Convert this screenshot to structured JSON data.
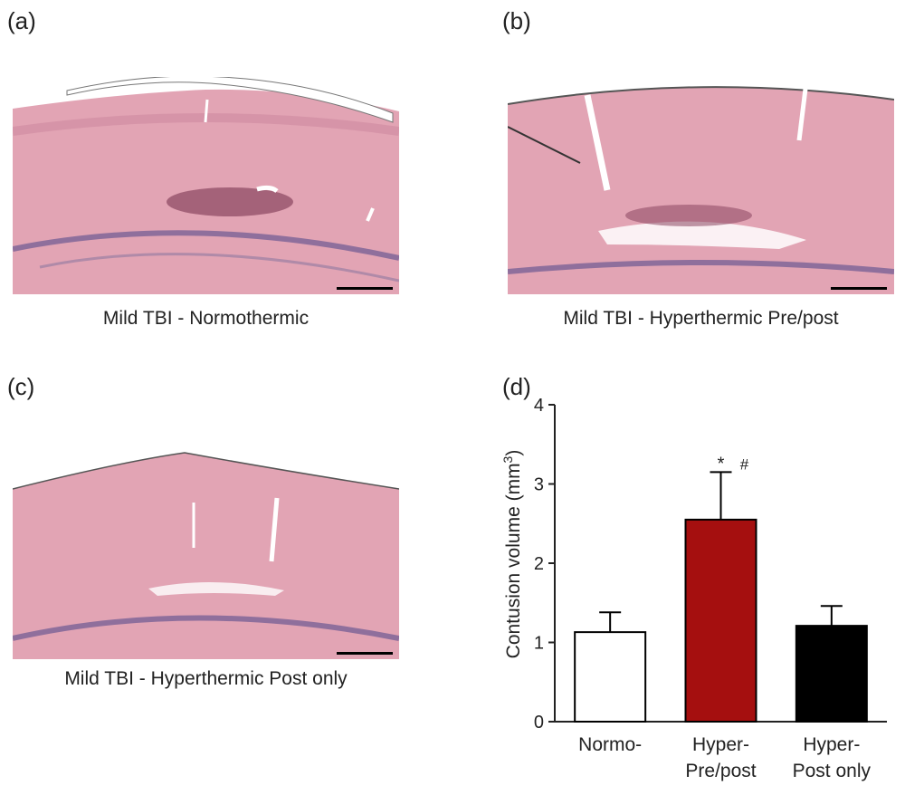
{
  "panels": {
    "a": {
      "letter": "(a)",
      "caption": "Mild TBI - Normothermic"
    },
    "b": {
      "letter": "(b)",
      "caption": "Mild TBI - Hyperthermic Pre/post"
    },
    "c": {
      "letter": "(c)",
      "caption": "Mild TBI - Hyperthermic Post only"
    },
    "d": {
      "letter": "(d)"
    }
  },
  "colors": {
    "tissue": "#e2a4b4",
    "tissue_dark": "#cf8aa0",
    "nuclei_band": "#8f6f9c",
    "lesion": "#8a4660",
    "normo_bar": "#ffffff",
    "pre_post_bar": "#a50f0f",
    "post_only_bar": "#000000"
  },
  "chart_data": {
    "type": "bar",
    "categories": [
      "Normo-",
      "Hyper-\nPre/post",
      "Hyper-\nPost only"
    ],
    "category_lines": [
      [
        "Normo-"
      ],
      [
        "Hyper-",
        "Pre/post"
      ],
      [
        "Hyper-",
        "Post only"
      ]
    ],
    "values": [
      1.13,
      2.55,
      1.21
    ],
    "errors": [
      0.25,
      0.6,
      0.25
    ],
    "bar_colors": [
      "#ffffff",
      "#a50f0f",
      "#000000"
    ],
    "annotations": [
      {
        "category": "Hyper-\nPre/post",
        "text": "*"
      },
      {
        "category": "Hyper-\nPre/post",
        "text": "#"
      }
    ],
    "ylabel": "Contusion volume (mm",
    "ylabel_superscript": "3",
    "ylabel_close": ")",
    "ylim": [
      0,
      4
    ],
    "yticks": [
      0,
      1,
      2,
      3,
      4
    ],
    "ytick_labels": [
      "0",
      "1",
      "2",
      "3",
      "4"
    ]
  }
}
